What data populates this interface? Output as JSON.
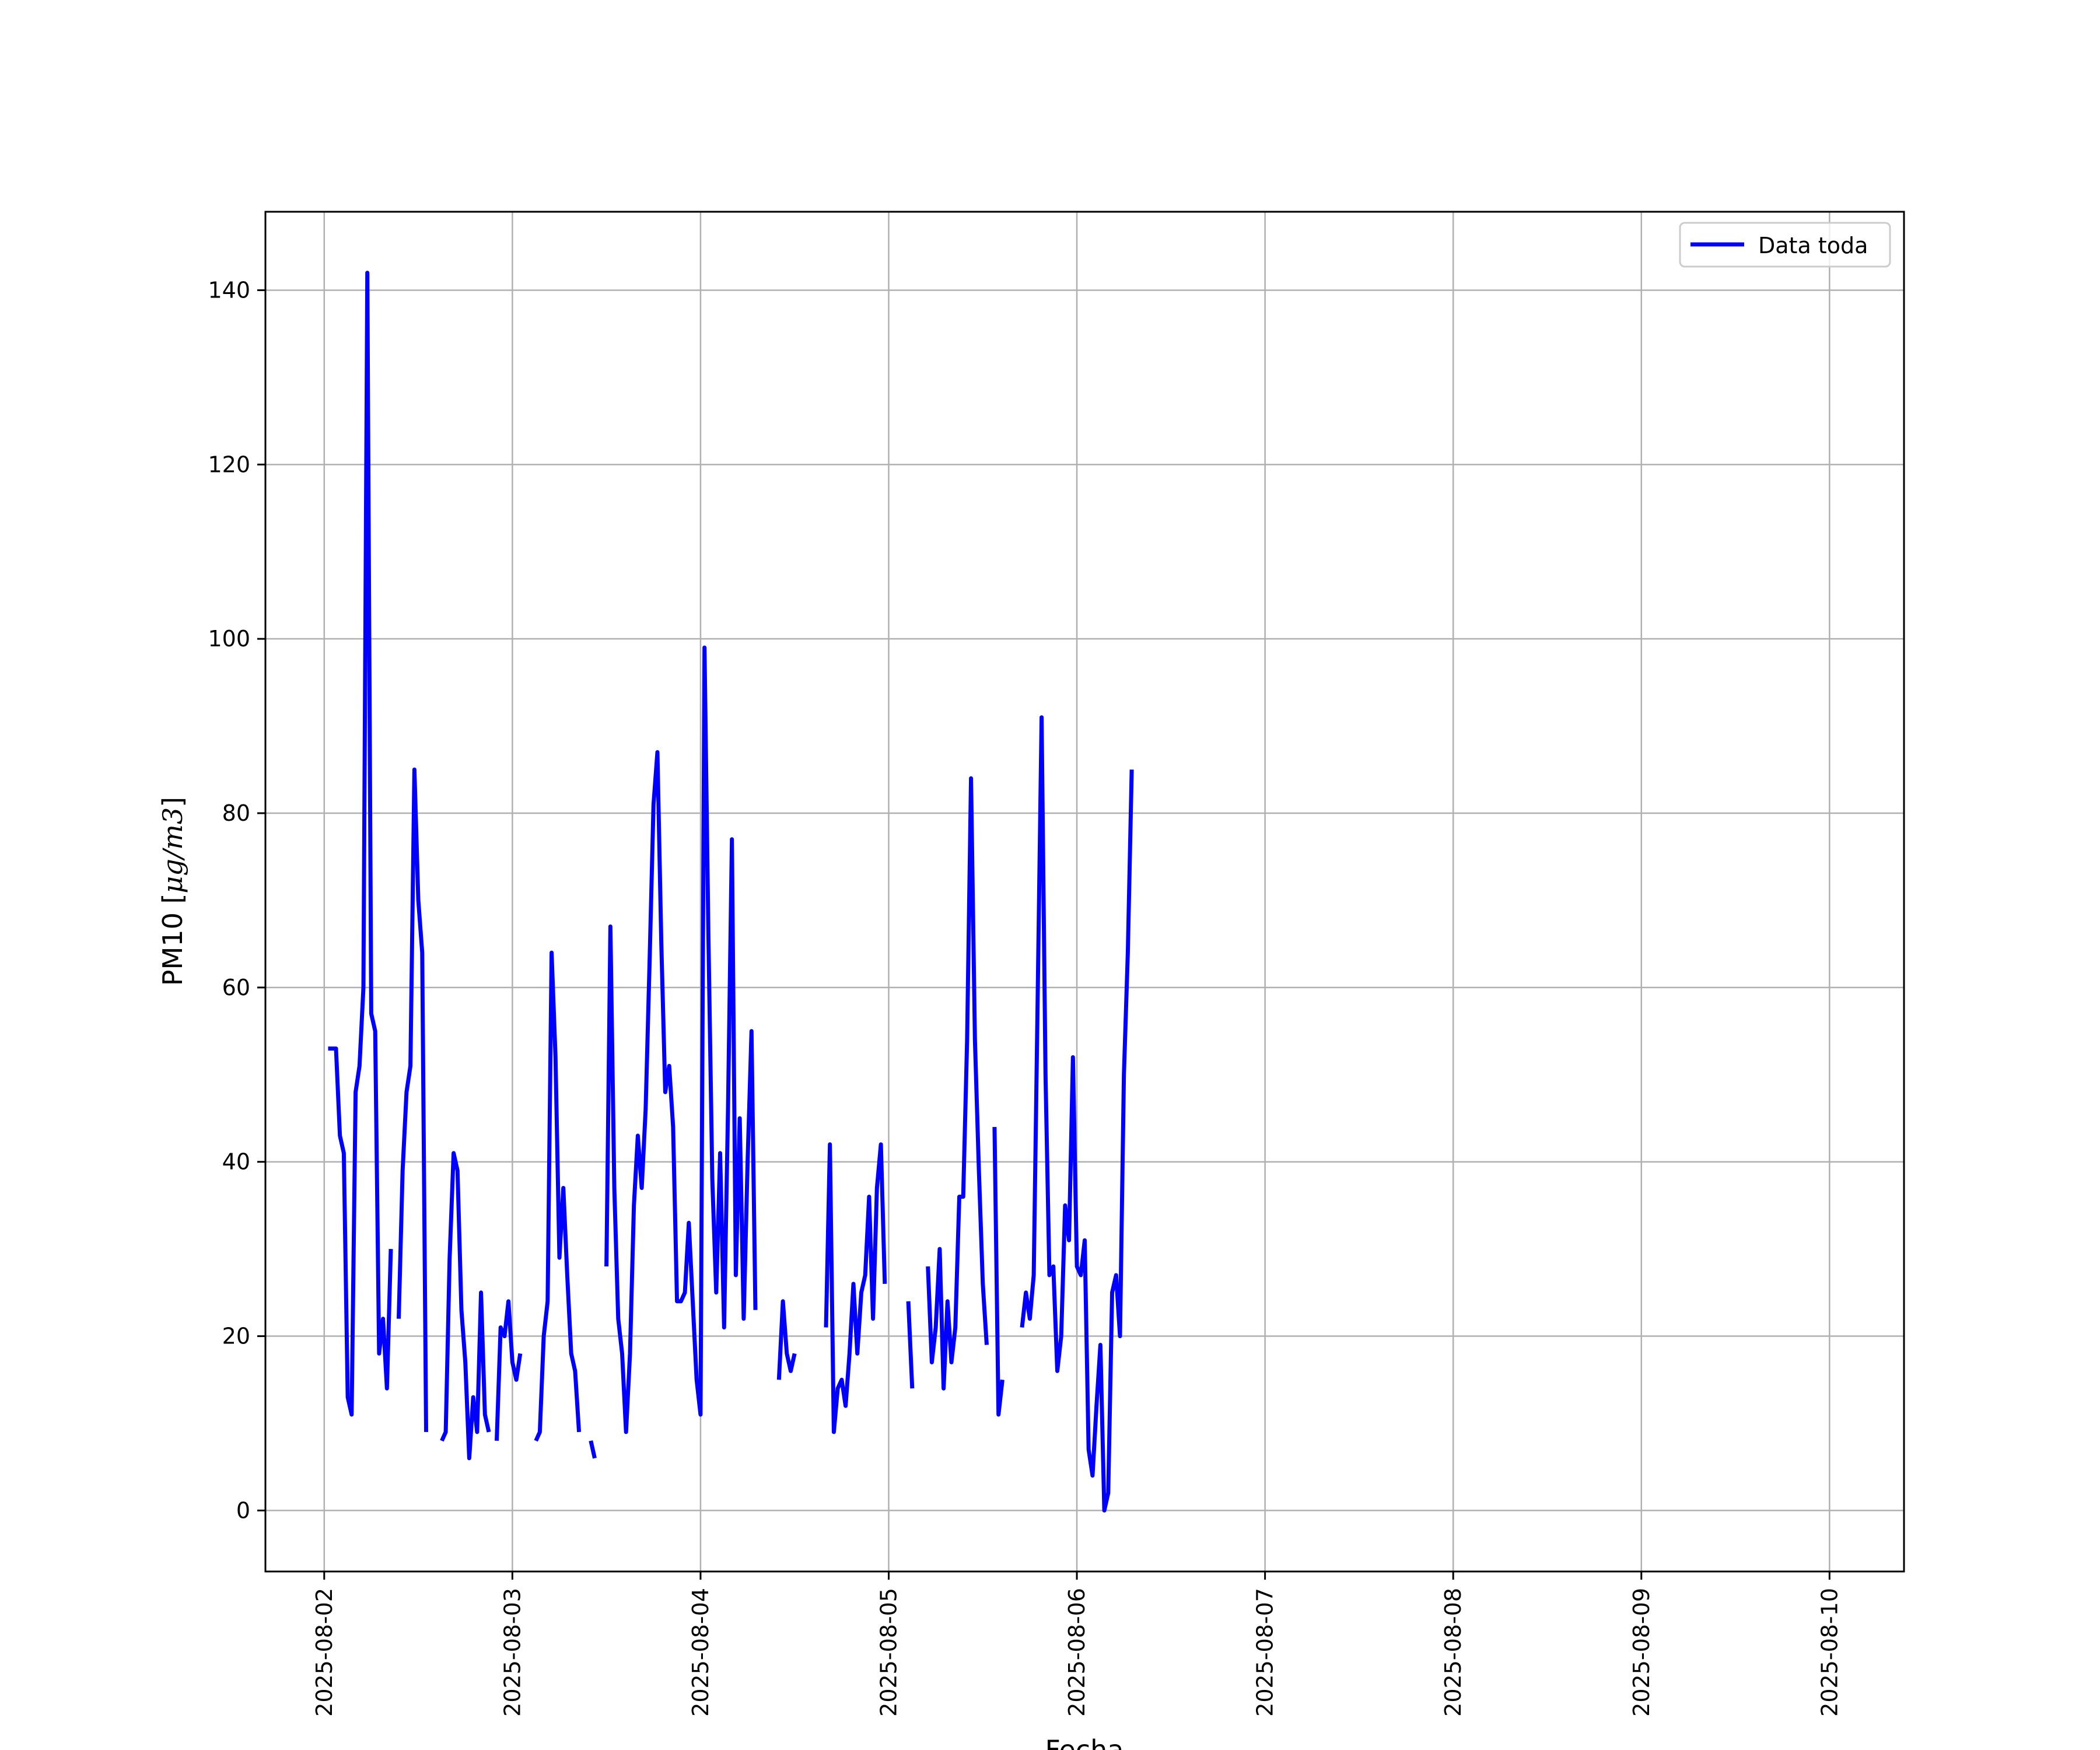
{
  "chart_data": {
    "type": "line",
    "xlabel": "Fecha",
    "ylabel_prefix": "PM10 [",
    "ylabel_unit": "μg/m3",
    "ylabel_suffix": "]",
    "x_ticks": [
      "2025-08-02",
      "2025-08-03",
      "2025-08-04",
      "2025-08-05",
      "2025-08-06",
      "2025-08-07",
      "2025-08-08",
      "2025-08-09",
      "2025-08-10"
    ],
    "y_ticks": [
      0,
      20,
      40,
      60,
      80,
      100,
      120,
      140
    ],
    "xlim": [
      "2025-08-01T16:30",
      "2025-08-10T09:30"
    ],
    "ylim": [
      -7,
      149
    ],
    "grid": true,
    "legend_position": "upper-right",
    "line_color": "#0000ff",
    "series": [
      {
        "name": "Data toda",
        "segments": [
          [
            [
              "2025-08-02T00:30",
              53
            ],
            [
              "2025-08-02T01:00",
              53
            ],
            [
              "2025-08-02T01:30",
              53
            ],
            [
              "2025-08-02T02:00",
              43
            ],
            [
              "2025-08-02T02:30",
              41
            ],
            [
              "2025-08-02T03:00",
              13
            ],
            [
              "2025-08-02T03:30",
              11
            ],
            [
              "2025-08-02T04:00",
              48
            ],
            [
              "2025-08-02T04:30",
              51
            ],
            [
              "2025-08-02T05:00",
              60
            ],
            [
              "2025-08-02T05:30",
              142
            ],
            [
              "2025-08-02T06:00",
              57
            ],
            [
              "2025-08-02T06:30",
              55
            ],
            [
              "2025-08-02T07:00",
              18
            ],
            [
              "2025-08-02T07:30",
              22
            ],
            [
              "2025-08-02T08:00",
              14
            ],
            [
              "2025-08-02T08:30",
              30
            ]
          ],
          [
            [
              "2025-08-02T09:30",
              22
            ],
            [
              "2025-08-02T10:00",
              39
            ],
            [
              "2025-08-02T10:30",
              48
            ],
            [
              "2025-08-02T11:00",
              51
            ],
            [
              "2025-08-02T11:30",
              85
            ],
            [
              "2025-08-02T12:00",
              70
            ],
            [
              "2025-08-02T12:30",
              64
            ],
            [
              "2025-08-02T13:00",
              9
            ]
          ],
          [
            [
              "2025-08-02T15:00",
              8
            ],
            [
              "2025-08-02T15:30",
              9
            ],
            [
              "2025-08-02T16:00",
              29
            ],
            [
              "2025-08-02T16:30",
              41
            ],
            [
              "2025-08-02T17:00",
              39
            ],
            [
              "2025-08-02T17:30",
              23
            ],
            [
              "2025-08-02T18:00",
              17
            ],
            [
              "2025-08-02T18:30",
              6
            ],
            [
              "2025-08-02T19:00",
              13
            ],
            [
              "2025-08-02T19:30",
              9
            ],
            [
              "2025-08-02T20:00",
              25
            ],
            [
              "2025-08-02T20:30",
              11
            ],
            [
              "2025-08-02T21:00",
              9
            ]
          ],
          [
            [
              "2025-08-02T22:00",
              8
            ],
            [
              "2025-08-02T22:30",
              21
            ],
            [
              "2025-08-02T23:00",
              20
            ],
            [
              "2025-08-02T23:30",
              24
            ],
            [
              "2025-08-03T00:00",
              17
            ],
            [
              "2025-08-03T00:30",
              15
            ],
            [
              "2025-08-03T01:00",
              18
            ]
          ],
          [
            [
              "2025-08-03T03:00",
              8
            ],
            [
              "2025-08-03T03:30",
              9
            ],
            [
              "2025-08-03T04:00",
              20
            ],
            [
              "2025-08-03T04:30",
              24
            ],
            [
              "2025-08-03T05:00",
              64
            ],
            [
              "2025-08-03T05:30",
              52
            ],
            [
              "2025-08-03T06:00",
              29
            ],
            [
              "2025-08-03T06:30",
              37
            ],
            [
              "2025-08-03T07:00",
              27
            ],
            [
              "2025-08-03T07:30",
              18
            ],
            [
              "2025-08-03T08:00",
              16
            ],
            [
              "2025-08-03T08:30",
              9
            ]
          ],
          [
            [
              "2025-08-03T10:00",
              8
            ],
            [
              "2025-08-03T10:30",
              6
            ]
          ],
          [
            [
              "2025-08-03T12:00",
              28
            ],
            [
              "2025-08-03T12:30",
              67
            ],
            [
              "2025-08-03T13:00",
              37
            ],
            [
              "2025-08-03T13:30",
              22
            ],
            [
              "2025-08-03T14:00",
              18
            ],
            [
              "2025-08-03T14:30",
              9
            ],
            [
              "2025-08-03T15:00",
              18
            ],
            [
              "2025-08-03T15:30",
              35
            ],
            [
              "2025-08-03T16:00",
              43
            ],
            [
              "2025-08-03T16:30",
              37
            ],
            [
              "2025-08-03T17:00",
              46
            ],
            [
              "2025-08-03T17:30",
              63
            ],
            [
              "2025-08-03T18:00",
              81
            ],
            [
              "2025-08-03T18:30",
              87
            ],
            [
              "2025-08-03T19:00",
              65
            ],
            [
              "2025-08-03T19:30",
              48
            ],
            [
              "2025-08-03T20:00",
              51
            ],
            [
              "2025-08-03T20:30",
              44
            ],
            [
              "2025-08-03T21:00",
              24
            ],
            [
              "2025-08-03T21:30",
              24
            ],
            [
              "2025-08-03T22:00",
              25
            ],
            [
              "2025-08-03T22:30",
              33
            ],
            [
              "2025-08-03T23:00",
              24
            ],
            [
              "2025-08-03T23:30",
              15
            ],
            [
              "2025-08-04T00:00",
              11
            ],
            [
              "2025-08-04T00:30",
              99
            ],
            [
              "2025-08-04T01:00",
              66
            ],
            [
              "2025-08-04T01:30",
              38
            ],
            [
              "2025-08-04T02:00",
              25
            ],
            [
              "2025-08-04T02:30",
              41
            ],
            [
              "2025-08-04T03:00",
              21
            ],
            [
              "2025-08-04T03:30",
              46
            ],
            [
              "2025-08-04T04:00",
              77
            ],
            [
              "2025-08-04T04:30",
              27
            ],
            [
              "2025-08-04T05:00",
              45
            ],
            [
              "2025-08-04T05:30",
              22
            ],
            [
              "2025-08-04T06:00",
              40
            ],
            [
              "2025-08-04T06:30",
              55
            ],
            [
              "2025-08-04T07:00",
              23
            ]
          ],
          [
            [
              "2025-08-04T10:00",
              15
            ],
            [
              "2025-08-04T10:30",
              24
            ],
            [
              "2025-08-04T11:00",
              18
            ],
            [
              "2025-08-04T11:30",
              16
            ],
            [
              "2025-08-04T12:00",
              18
            ]
          ],
          [
            [
              "2025-08-04T16:00",
              21
            ],
            [
              "2025-08-04T16:30",
              42
            ],
            [
              "2025-08-04T17:00",
              9
            ],
            [
              "2025-08-04T17:30",
              14
            ],
            [
              "2025-08-04T18:00",
              15
            ],
            [
              "2025-08-04T18:30",
              12
            ],
            [
              "2025-08-04T19:00",
              18
            ],
            [
              "2025-08-04T19:30",
              26
            ],
            [
              "2025-08-04T20:00",
              18
            ],
            [
              "2025-08-04T20:30",
              25
            ],
            [
              "2025-08-04T21:00",
              27
            ],
            [
              "2025-08-04T21:30",
              36
            ],
            [
              "2025-08-04T22:00",
              22
            ],
            [
              "2025-08-04T22:30",
              37
            ],
            [
              "2025-08-04T23:00",
              42
            ],
            [
              "2025-08-04T23:30",
              26
            ]
          ],
          [
            [
              "2025-08-05T02:30",
              24
            ],
            [
              "2025-08-05T03:00",
              14
            ]
          ],
          [
            [
              "2025-08-05T05:00",
              28
            ],
            [
              "2025-08-05T05:30",
              17
            ],
            [
              "2025-08-05T06:00",
              21
            ],
            [
              "2025-08-05T06:30",
              30
            ],
            [
              "2025-08-05T07:00",
              14
            ],
            [
              "2025-08-05T07:30",
              24
            ],
            [
              "2025-08-05T08:00",
              17
            ],
            [
              "2025-08-05T08:30",
              21
            ],
            [
              "2025-08-05T09:00",
              36
            ],
            [
              "2025-08-05T09:30",
              36
            ],
            [
              "2025-08-05T10:00",
              54
            ],
            [
              "2025-08-05T10:30",
              84
            ],
            [
              "2025-08-05T11:00",
              54
            ],
            [
              "2025-08-05T11:30",
              39
            ],
            [
              "2025-08-05T12:00",
              26
            ],
            [
              "2025-08-05T12:30",
              19
            ]
          ],
          [
            [
              "2025-08-05T13:30",
              44
            ],
            [
              "2025-08-05T14:00",
              11
            ],
            [
              "2025-08-05T14:30",
              15
            ]
          ],
          [
            [
              "2025-08-05T17:00",
              21
            ],
            [
              "2025-08-05T17:30",
              25
            ],
            [
              "2025-08-05T18:00",
              22
            ],
            [
              "2025-08-05T18:30",
              27
            ],
            [
              "2025-08-05T19:00",
              59
            ],
            [
              "2025-08-05T19:30",
              91
            ],
            [
              "2025-08-05T20:00",
              50
            ],
            [
              "2025-08-05T20:30",
              27
            ],
            [
              "2025-08-05T21:00",
              28
            ],
            [
              "2025-08-05T21:30",
              16
            ],
            [
              "2025-08-05T22:00",
              20
            ],
            [
              "2025-08-05T22:30",
              35
            ],
            [
              "2025-08-05T23:00",
              31
            ],
            [
              "2025-08-05T23:30",
              52
            ],
            [
              "2025-08-06T00:00",
              28
            ],
            [
              "2025-08-06T00:30",
              27
            ],
            [
              "2025-08-06T01:00",
              31
            ],
            [
              "2025-08-06T01:30",
              7
            ],
            [
              "2025-08-06T02:00",
              4
            ],
            [
              "2025-08-06T02:30",
              12
            ],
            [
              "2025-08-06T03:00",
              19
            ],
            [
              "2025-08-06T03:30",
              0
            ],
            [
              "2025-08-06T04:00",
              2
            ],
            [
              "2025-08-06T04:30",
              25
            ],
            [
              "2025-08-06T05:00",
              27
            ],
            [
              "2025-08-06T05:30",
              20
            ],
            [
              "2025-08-06T06:00",
              50
            ],
            [
              "2025-08-06T06:30",
              64
            ],
            [
              "2025-08-06T07:00",
              85
            ]
          ]
        ]
      }
    ]
  }
}
